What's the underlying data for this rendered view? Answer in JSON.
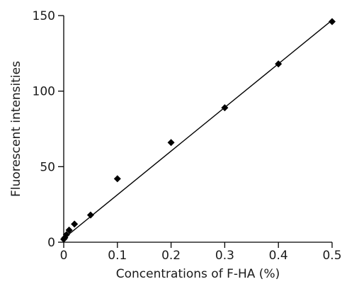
{
  "chart_data": {
    "type": "scatter",
    "title": "",
    "xlabel": "Concentrations of F-HA (%)",
    "ylabel": "Fluorescent intensities",
    "xlim": [
      0,
      0.5
    ],
    "ylim": [
      0,
      150
    ],
    "x_ticks": [
      0,
      0.1,
      0.2,
      0.3,
      0.4,
      0.5
    ],
    "x_tick_labels": [
      "0",
      "0.1",
      "0.2",
      "0.3",
      "0.4",
      "0.5"
    ],
    "y_ticks": [
      0,
      50,
      100,
      150
    ],
    "y_tick_labels": [
      "0",
      "50",
      "100",
      "150"
    ],
    "grid": false,
    "legend": "none",
    "marker": "diamond",
    "marker_color": "#000000",
    "points": [
      {
        "x": 0.0,
        "y": 2
      },
      {
        "x": 0.002,
        "y": 3
      },
      {
        "x": 0.005,
        "y": 5
      },
      {
        "x": 0.01,
        "y": 8
      },
      {
        "x": 0.02,
        "y": 12
      },
      {
        "x": 0.05,
        "y": 18
      },
      {
        "x": 0.1,
        "y": 42
      },
      {
        "x": 0.2,
        "y": 66
      },
      {
        "x": 0.3,
        "y": 89
      },
      {
        "x": 0.4,
        "y": 118
      },
      {
        "x": 0.5,
        "y": 146
      }
    ],
    "fit_line": {
      "x": [
        0,
        0.5
      ],
      "y": [
        2.5,
        147
      ]
    }
  }
}
